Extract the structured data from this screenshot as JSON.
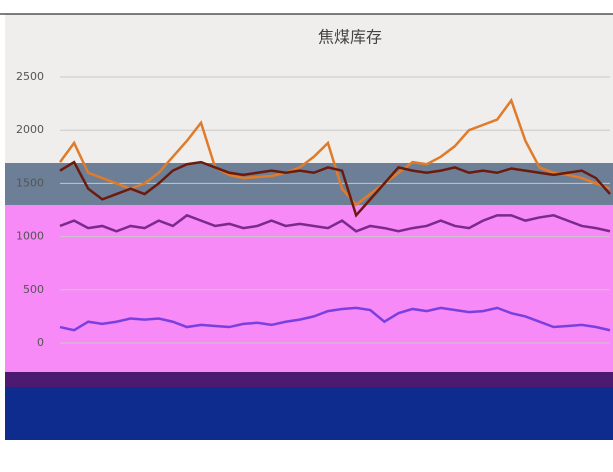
{
  "chart_data": {
    "type": "line",
    "title": "焦煤库存",
    "ylim": [
      0,
      2500
    ],
    "yticks": [
      0,
      500,
      1000,
      1500,
      2000,
      2500
    ],
    "grid": true,
    "series": [
      {
        "color": "#e07b2a",
        "values": [
          1700,
          1880,
          1600,
          1550,
          1500,
          1450,
          1500,
          1600,
          1750,
          1900,
          2070,
          1650,
          1580,
          1550,
          1560,
          1570,
          1600,
          1650,
          1750,
          1880,
          1450,
          1300,
          1400,
          1500,
          1600,
          1700,
          1680,
          1750,
          1850,
          2000,
          2050,
          2100,
          2280,
          1900,
          1650,
          1600,
          1580,
          1550,
          1500,
          1450
        ]
      },
      {
        "color": "#6b1a0e",
        "values": [
          1620,
          1700,
          1450,
          1350,
          1400,
          1450,
          1400,
          1500,
          1620,
          1680,
          1700,
          1650,
          1600,
          1580,
          1600,
          1620,
          1600,
          1620,
          1600,
          1650,
          1620,
          1200,
          1350,
          1500,
          1650,
          1620,
          1600,
          1620,
          1650,
          1600,
          1620,
          1600,
          1640,
          1620,
          1600,
          1580,
          1600,
          1620,
          1550,
          1400
        ]
      },
      {
        "color": "#7a2a8a",
        "values": [
          1100,
          1150,
          1080,
          1100,
          1050,
          1100,
          1080,
          1150,
          1100,
          1200,
          1150,
          1100,
          1120,
          1080,
          1100,
          1150,
          1100,
          1120,
          1100,
          1080,
          1150,
          1050,
          1100,
          1080,
          1050,
          1080,
          1100,
          1150,
          1100,
          1080,
          1150,
          1200,
          1200,
          1150,
          1180,
          1200,
          1150,
          1100,
          1080,
          1050
        ]
      },
      {
        "color": "#7b3fe0",
        "values": [
          150,
          120,
          200,
          180,
          200,
          230,
          220,
          230,
          200,
          150,
          170,
          160,
          150,
          180,
          190,
          170,
          200,
          220,
          250,
          300,
          320,
          330,
          310,
          200,
          280,
          320,
          300,
          330,
          310,
          290,
          300,
          330,
          280,
          250,
          200,
          150,
          160,
          170,
          150,
          120
        ]
      }
    ]
  }
}
